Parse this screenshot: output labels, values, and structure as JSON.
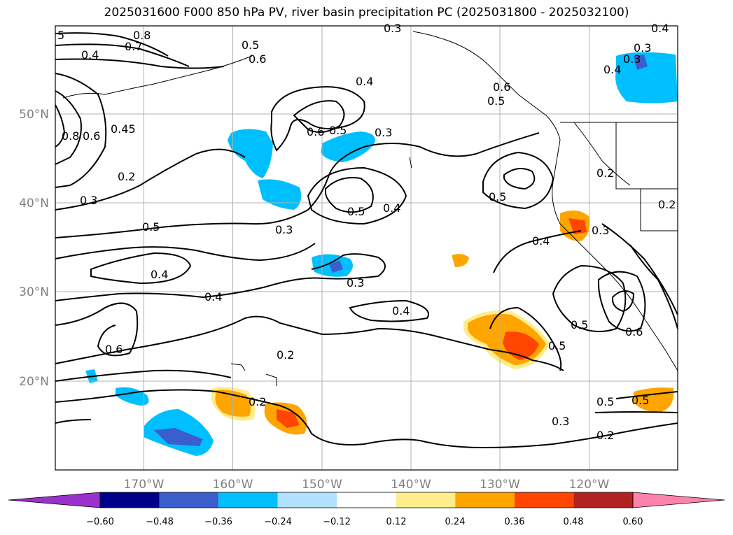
{
  "title": "2025031600 F000 850 hPa PV, river basin precipitation PC (2025031800 - 2025032100)",
  "map": {
    "lon_range": [
      -180,
      -110
    ],
    "lat_range": [
      10,
      60
    ],
    "lon_ticks": [
      "170°W",
      "160°W",
      "150°W",
      "140°W",
      "130°W",
      "120°W"
    ],
    "lat_ticks": [
      "50°N",
      "40°N",
      "30°N",
      "20°N"
    ],
    "grid": true,
    "contour_labels": [
      "5",
      "0.8",
      "0.7",
      "0.6",
      "0.5",
      "0.4",
      "0.3",
      "0.4",
      "0.6",
      "0.5",
      "0.3",
      "0.4",
      "0.5",
      "0.4",
      "0.3",
      "0.4",
      "0.3",
      "0.8",
      "0.6",
      "0.45",
      "0.2",
      "0.3",
      "0.5",
      "0.3",
      "0.5",
      "0.4",
      "0.5",
      "0.4",
      "0.3",
      "0.2",
      "0.2",
      "0.6",
      "0.4",
      "0.3",
      "0.4",
      "0.6",
      "0.2",
      "0.2",
      "0.5",
      "0.5",
      "0.6",
      "0.5",
      "0.5",
      "0.3",
      "0.2"
    ]
  },
  "colorbar": {
    "ticks": [
      "−0.60",
      "−0.48",
      "−0.36",
      "−0.24",
      "−0.12",
      "0.12",
      "0.24",
      "0.36",
      "0.48",
      "0.60"
    ],
    "colors": [
      "#9932cc",
      "#00008b",
      "#3a5fcd",
      "#00bfff",
      "#b0e2ff",
      "#ffffff",
      "#ffec8b",
      "#ffa500",
      "#ff4500",
      "#b22222",
      "#ff82ab"
    ]
  }
}
